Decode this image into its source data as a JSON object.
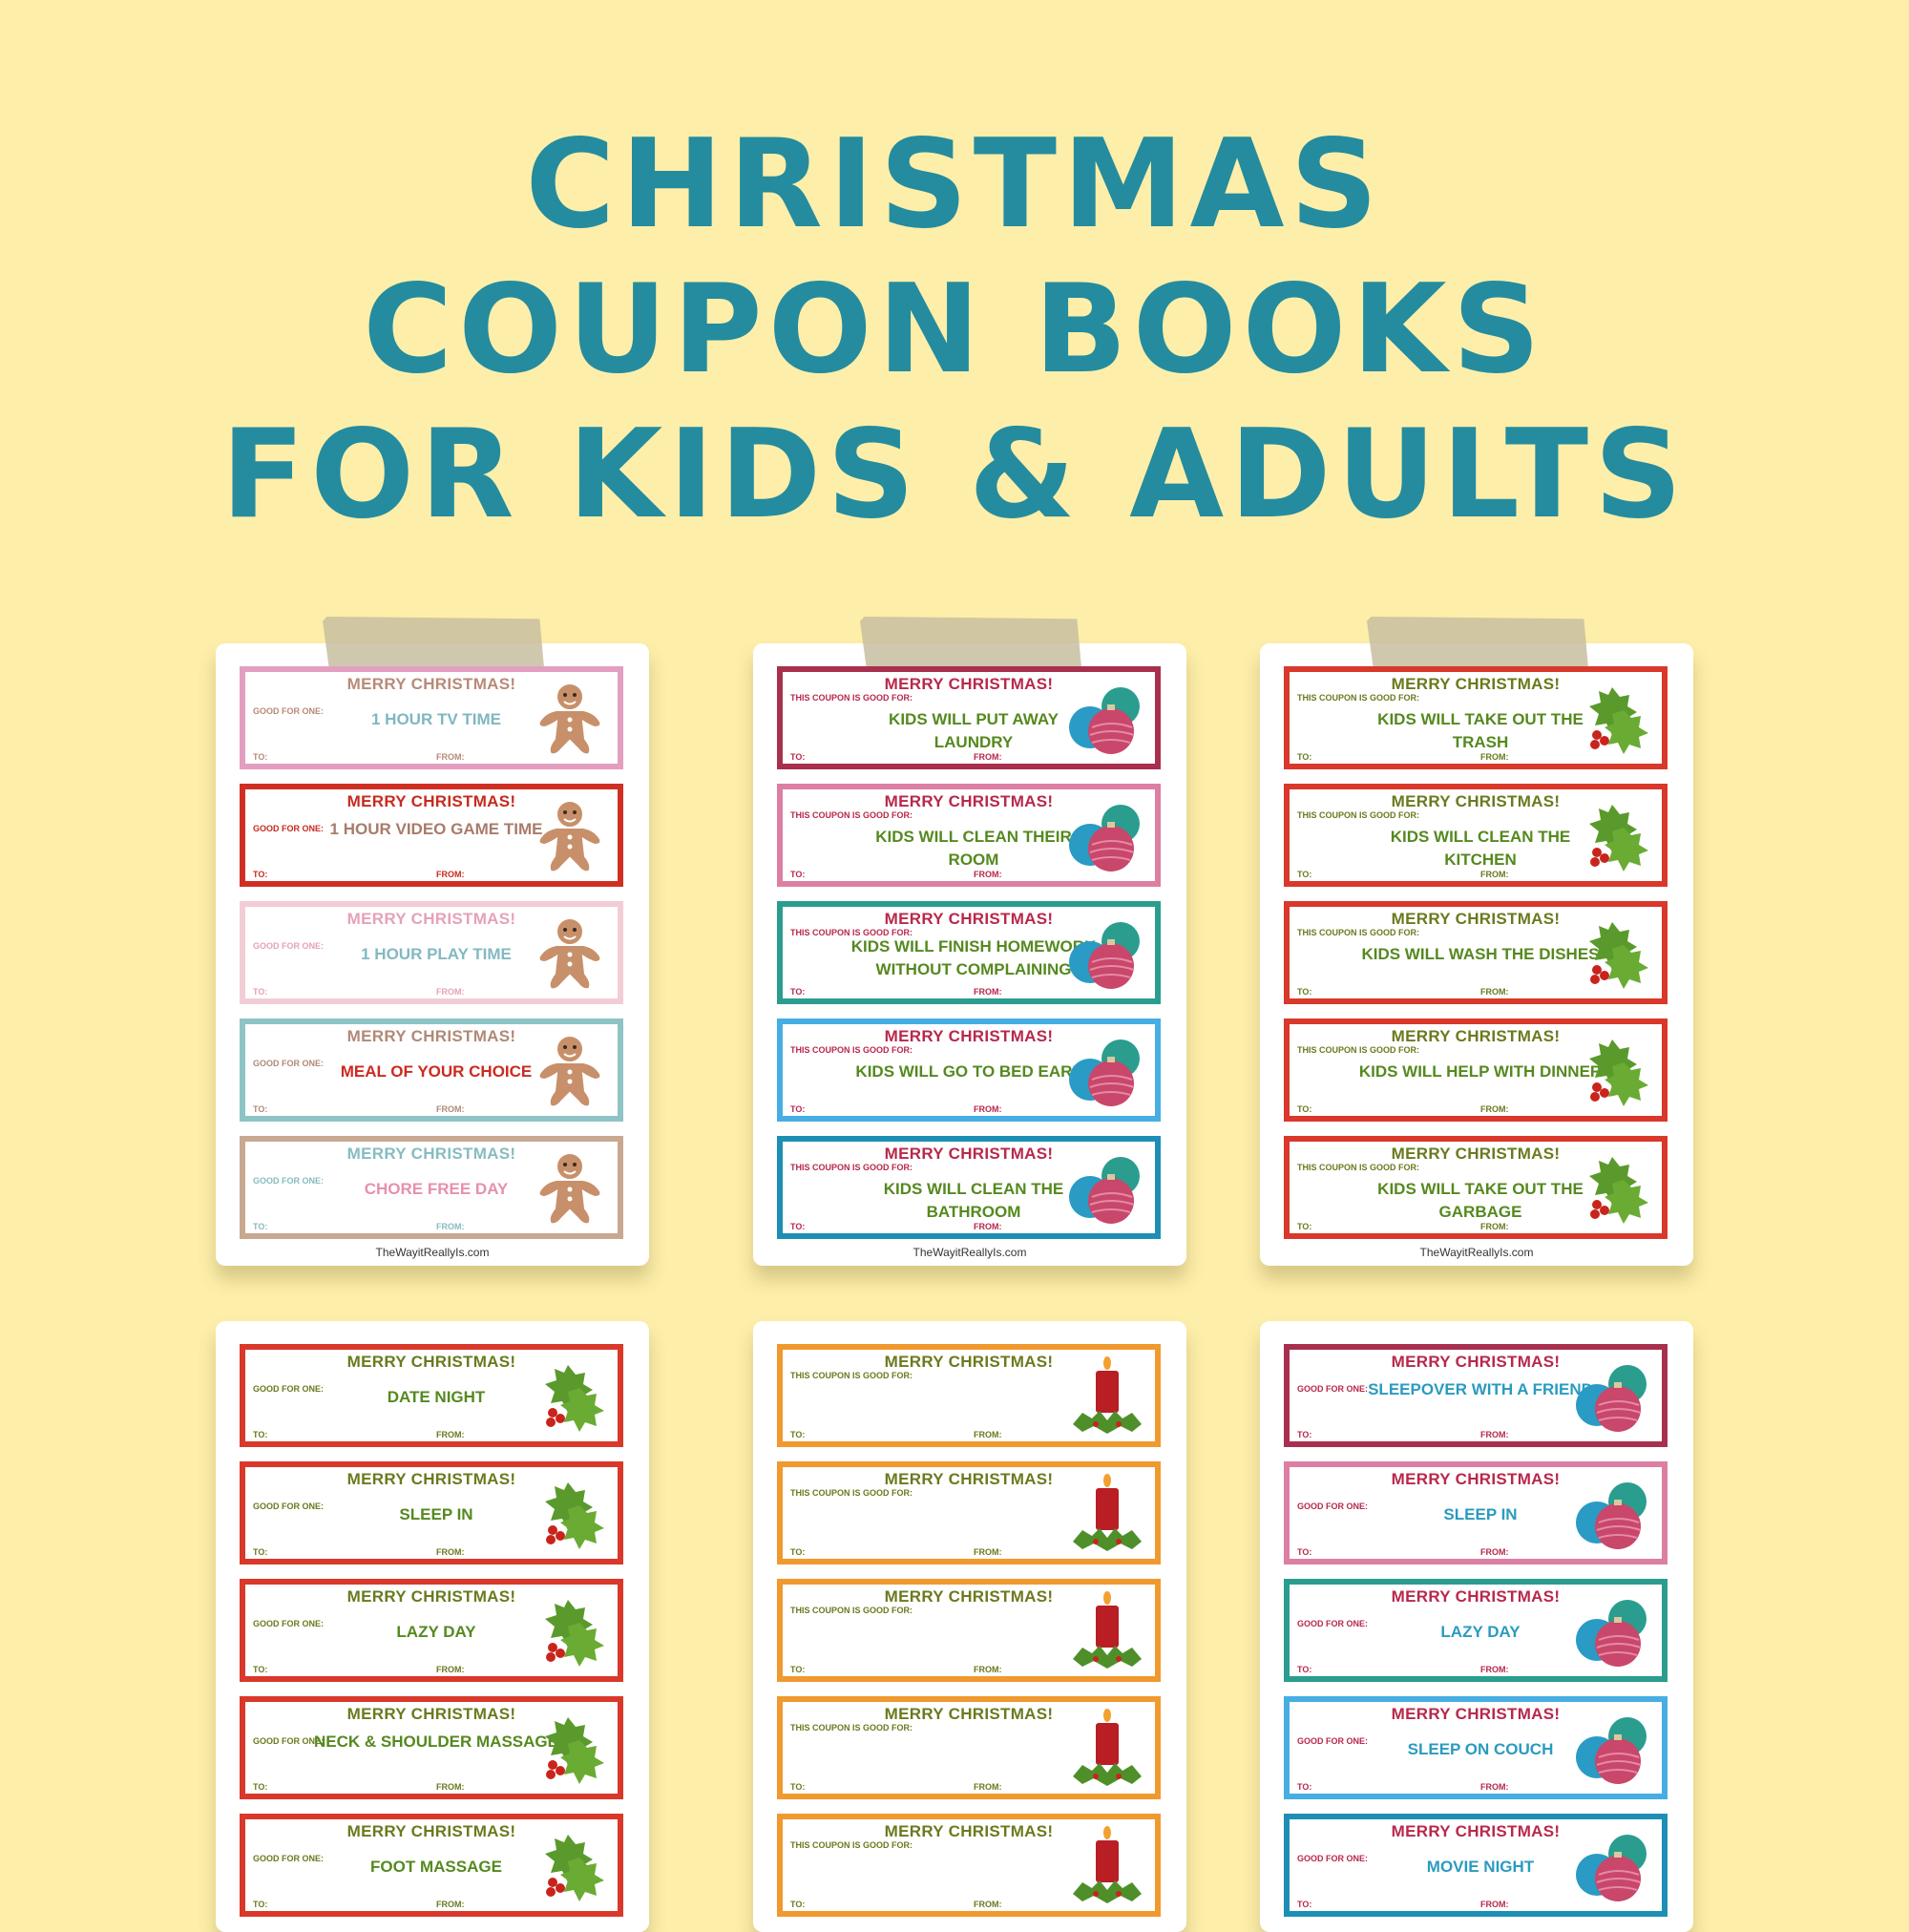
{
  "title": {
    "line1": "CHRISTMAS",
    "line2": "COUPON BOOKS",
    "line3": "FOR KIDS & ADULTS"
  },
  "sheets": [
    {
      "footer": "TheWayitReallyIs.com",
      "label": "GOOD FOR ONE:",
      "coupons": [
        {
          "merry": "MERRY CHRISTMAS!",
          "text": "1 HOUR TV TIME",
          "to": "TO:",
          "from": "FROM:",
          "border": "#e39fc0",
          "merry_color": "#b88a78",
          "text_color": "#7fb7c0",
          "art": "gingerbread-icon"
        },
        {
          "merry": "MERRY CHRISTMAS!",
          "text": "1 HOUR VIDEO GAME TIME",
          "to": "TO:",
          "from": "FROM:",
          "border": "#cf2f23",
          "merry_color": "#c72a1f",
          "text_color": "#a87b6b",
          "art": "gingerbread-icon"
        },
        {
          "merry": "MERRY CHRISTMAS!",
          "text": "1 HOUR PLAY TIME",
          "to": "TO:",
          "from": "FROM:",
          "border": "#f2cdd6",
          "merry_color": "#e5a2b6",
          "text_color": "#83b9c1",
          "art": "gingerbread-icon"
        },
        {
          "merry": "MERRY CHRISTMAS!",
          "text": "MEAL OF YOUR CHOICE",
          "to": "TO:",
          "from": "FROM:",
          "border": "#8ec4c6",
          "merry_color": "#b08977",
          "text_color": "#cc2a1f",
          "art": "gingerbread-icon"
        },
        {
          "merry": "MERRY CHRISTMAS!",
          "text": "CHORE FREE DAY",
          "to": "TO:",
          "from": "FROM:",
          "border": "#c8a891",
          "merry_color": "#86bcc0",
          "text_color": "#e690b0",
          "art": "gingerbread-icon"
        }
      ]
    },
    {
      "footer": "TheWayitReallyIs.com",
      "label": "THIS COUPON IS GOOD FOR:",
      "coupons": [
        {
          "merry": "MERRY CHRISTMAS!",
          "text": "KIDS WILL PUT AWAY LAUNDRY",
          "to": "TO:",
          "from": "FROM:",
          "border": "#a8304e",
          "merry_color": "#b8284b",
          "text_color": "#55891f",
          "art": "ornaments-icon"
        },
        {
          "merry": "MERRY CHRISTMAS!",
          "text": "KIDS WILL CLEAN THEIR ROOM",
          "to": "TO:",
          "from": "FROM:",
          "border": "#dc7fa3",
          "merry_color": "#b8284b",
          "text_color": "#55891f",
          "art": "ornaments-icon"
        },
        {
          "merry": "MERRY CHRISTMAS!",
          "text": "KIDS WILL FINISH HOMEWORK WITHOUT COMPLAINING",
          "to": "TO:",
          "from": "FROM:",
          "border": "#2a9d8f",
          "merry_color": "#b8284b",
          "text_color": "#55891f",
          "art": "ornaments-icon"
        },
        {
          "merry": "MERRY CHRISTMAS!",
          "text": "KIDS WILL GO TO BED EARLY",
          "to": "TO:",
          "from": "FROM:",
          "border": "#46aee3",
          "merry_color": "#b8284b",
          "text_color": "#55891f",
          "art": "ornaments-icon"
        },
        {
          "merry": "MERRY CHRISTMAS!",
          "text": "KIDS WILL CLEAN THE BATHROOM",
          "to": "TO:",
          "from": "FROM:",
          "border": "#1d8fb5",
          "merry_color": "#b8284b",
          "text_color": "#55891f",
          "art": "ornaments-icon"
        }
      ]
    },
    {
      "footer": "TheWayitReallyIs.com",
      "label": "THIS COUPON IS GOOD FOR:",
      "coupons": [
        {
          "merry": "MERRY CHRISTMAS!",
          "text": "KIDS WILL TAKE OUT THE TRASH",
          "to": "TO:",
          "from": "FROM:",
          "border": "#d9382a",
          "merry_color": "#6a7a1e",
          "text_color": "#55891f",
          "art": "holly-icon"
        },
        {
          "merry": "MERRY CHRISTMAS!",
          "text": "KIDS WILL CLEAN THE KITCHEN",
          "to": "TO:",
          "from": "FROM:",
          "border": "#d9382a",
          "merry_color": "#6a7a1e",
          "text_color": "#55891f",
          "art": "holly-icon"
        },
        {
          "merry": "MERRY CHRISTMAS!",
          "text": "KIDS WILL WASH THE DISHES",
          "to": "TO:",
          "from": "FROM:",
          "border": "#d9382a",
          "merry_color": "#6a7a1e",
          "text_color": "#55891f",
          "art": "holly-icon"
        },
        {
          "merry": "MERRY CHRISTMAS!",
          "text": "KIDS WILL HELP WITH DINNER",
          "to": "TO:",
          "from": "FROM:",
          "border": "#d9382a",
          "merry_color": "#6a7a1e",
          "text_color": "#55891f",
          "art": "holly-icon"
        },
        {
          "merry": "MERRY CHRISTMAS!",
          "text": "KIDS WILL TAKE OUT THE GARBAGE",
          "to": "TO:",
          "from": "FROM:",
          "border": "#d9382a",
          "merry_color": "#6a7a1e",
          "text_color": "#55891f",
          "art": "holly-icon"
        }
      ]
    },
    {
      "label": "GOOD FOR ONE:",
      "coupons": [
        {
          "merry": "MERRY CHRISTMAS!",
          "text": "DATE NIGHT",
          "to": "TO:",
          "from": "FROM:",
          "border": "#d9382a",
          "merry_color": "#6a7a1e",
          "text_color": "#55891f",
          "art": "holly-icon"
        },
        {
          "merry": "MERRY CHRISTMAS!",
          "text": "SLEEP IN",
          "to": "TO:",
          "from": "FROM:",
          "border": "#d9382a",
          "merry_color": "#6a7a1e",
          "text_color": "#55891f",
          "art": "holly-icon"
        },
        {
          "merry": "MERRY CHRISTMAS!",
          "text": "LAZY DAY",
          "to": "TO:",
          "from": "FROM:",
          "border": "#d9382a",
          "merry_color": "#6a7a1e",
          "text_color": "#55891f",
          "art": "holly-icon"
        },
        {
          "merry": "MERRY CHRISTMAS!",
          "text": "NECK & SHOULDER MASSAGE",
          "to": "TO:",
          "from": "FROM:",
          "border": "#d9382a",
          "merry_color": "#6a7a1e",
          "text_color": "#55891f",
          "art": "holly-icon"
        },
        {
          "merry": "MERRY CHRISTMAS!",
          "text": "FOOT MASSAGE",
          "to": "TO:",
          "from": "FROM:",
          "border": "#d9382a",
          "merry_color": "#6a7a1e",
          "text_color": "#55891f",
          "art": "holly-icon"
        }
      ]
    },
    {
      "label": "THIS COUPON IS GOOD FOR:",
      "coupons": [
        {
          "merry": "MERRY CHRISTMAS!",
          "text": "",
          "to": "TO:",
          "from": "FROM:",
          "border": "#f0992e",
          "merry_color": "#6a7a1e",
          "text_color": "#55891f",
          "art": "candle-icon"
        },
        {
          "merry": "MERRY CHRISTMAS!",
          "text": "",
          "to": "TO:",
          "from": "FROM:",
          "border": "#f0992e",
          "merry_color": "#6a7a1e",
          "text_color": "#55891f",
          "art": "candle-icon"
        },
        {
          "merry": "MERRY CHRISTMAS!",
          "text": "",
          "to": "TO:",
          "from": "FROM:",
          "border": "#f0992e",
          "merry_color": "#6a7a1e",
          "text_color": "#55891f",
          "art": "candle-icon"
        },
        {
          "merry": "MERRY CHRISTMAS!",
          "text": "",
          "to": "TO:",
          "from": "FROM:",
          "border": "#f0992e",
          "merry_color": "#6a7a1e",
          "text_color": "#55891f",
          "art": "candle-icon"
        },
        {
          "merry": "MERRY CHRISTMAS!",
          "text": "",
          "to": "TO:",
          "from": "FROM:",
          "border": "#f0992e",
          "merry_color": "#6a7a1e",
          "text_color": "#55891f",
          "art": "candle-icon"
        }
      ]
    },
    {
      "label": "GOOD FOR ONE:",
      "coupons": [
        {
          "merry": "MERRY CHRISTMAS!",
          "text": "SLEEPOVER WITH A FRIEND",
          "to": "TO:",
          "from": "FROM:",
          "border": "#a8304e",
          "merry_color": "#b8284b",
          "text_color": "#2a9bbf",
          "art": "ornaments-icon"
        },
        {
          "merry": "MERRY CHRISTMAS!",
          "text": "SLEEP IN",
          "to": "TO:",
          "from": "FROM:",
          "border": "#dc7fa3",
          "merry_color": "#b8284b",
          "text_color": "#2a9bbf",
          "art": "ornaments-icon"
        },
        {
          "merry": "MERRY CHRISTMAS!",
          "text": "LAZY DAY",
          "to": "TO:",
          "from": "FROM:",
          "border": "#2a9d8f",
          "merry_color": "#b8284b",
          "text_color": "#2a9bbf",
          "art": "ornaments-icon"
        },
        {
          "merry": "MERRY CHRISTMAS!",
          "text": "SLEEP ON COUCH",
          "to": "TO:",
          "from": "FROM:",
          "border": "#46aee3",
          "merry_color": "#b8284b",
          "text_color": "#2a9bbf",
          "art": "ornaments-icon"
        },
        {
          "merry": "MERRY CHRISTMAS!",
          "text": "MOVIE NIGHT",
          "to": "TO:",
          "from": "FROM:",
          "border": "#1d8fb5",
          "merry_color": "#b8284b",
          "text_color": "#2a9bbf",
          "art": "ornaments-icon"
        }
      ]
    }
  ]
}
